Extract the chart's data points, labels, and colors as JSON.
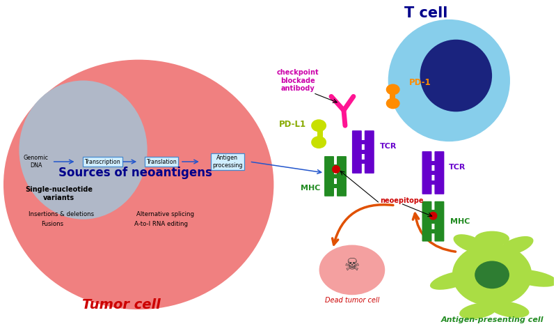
{
  "title": "T cell",
  "tumor_cell_label": "Tumor cell",
  "antigen_presenting_label": "Antigen-presenting cell",
  "dead_tumor_label": "Dead tumor cell",
  "sources_label": "Sources of neoantigens",
  "snv_label": "Single-nucleotide\nvariants",
  "indel_label": "Insertions & deletions",
  "fusions_label": "Fusions",
  "alt_splice_label": "Alternative splicing",
  "rna_edit_label": "A-to-I RNA editing",
  "genomic_dna_label": "Genomic\nDNA",
  "transcription_label": "Transcription",
  "translation_label": "Translation",
  "antigen_proc_label": "Antigen\nprocessing",
  "checkpoint_label": "checkpoint\nblockade\nantibody",
  "pd1_label": "PD-1",
  "pdl1_label": "PD-L1",
  "tcr_label": "TCR",
  "mhc_label": "MHC",
  "neoepitope_label": "neoepitope",
  "bg_color": "#ffffff",
  "tumor_cell_color": "#f08080",
  "nucleus_color": "#b0b8c8",
  "t_cell_body_color": "#87ceeb",
  "t_cell_nucleus_color": "#1a237e",
  "apc_color": "#aadd44",
  "apc_nucleus_color": "#2e7d32",
  "dead_tumor_color": "#f4a0a0",
  "tcr_color": "#6600cc",
  "mhc_tumor_color": "#228b22",
  "pd1_color": "#ff8c00",
  "pdl1_color": "#c8e000",
  "antibody_color": "#ff1493",
  "red_dot_color": "#cc0000",
  "arrow_orange_color": "#e05000",
  "box_fill_color": "#d0eeff",
  "box_edge_color": "#4488cc",
  "sources_text_color": "#00008b",
  "tumor_label_color": "#cc0000",
  "apc_label_color": "#228b22",
  "t_cell_label_color": "#00008b",
  "pd1_text_color": "#ff8c00",
  "pdl1_text_color": "#88aa00",
  "tcr_text_color": "#6600cc",
  "neoepitope_text_color": "#cc0000",
  "checkpoint_text_color": "#cc00aa",
  "flow_arrow_color": "#2255cc",
  "genomic_text_color": "#000000"
}
